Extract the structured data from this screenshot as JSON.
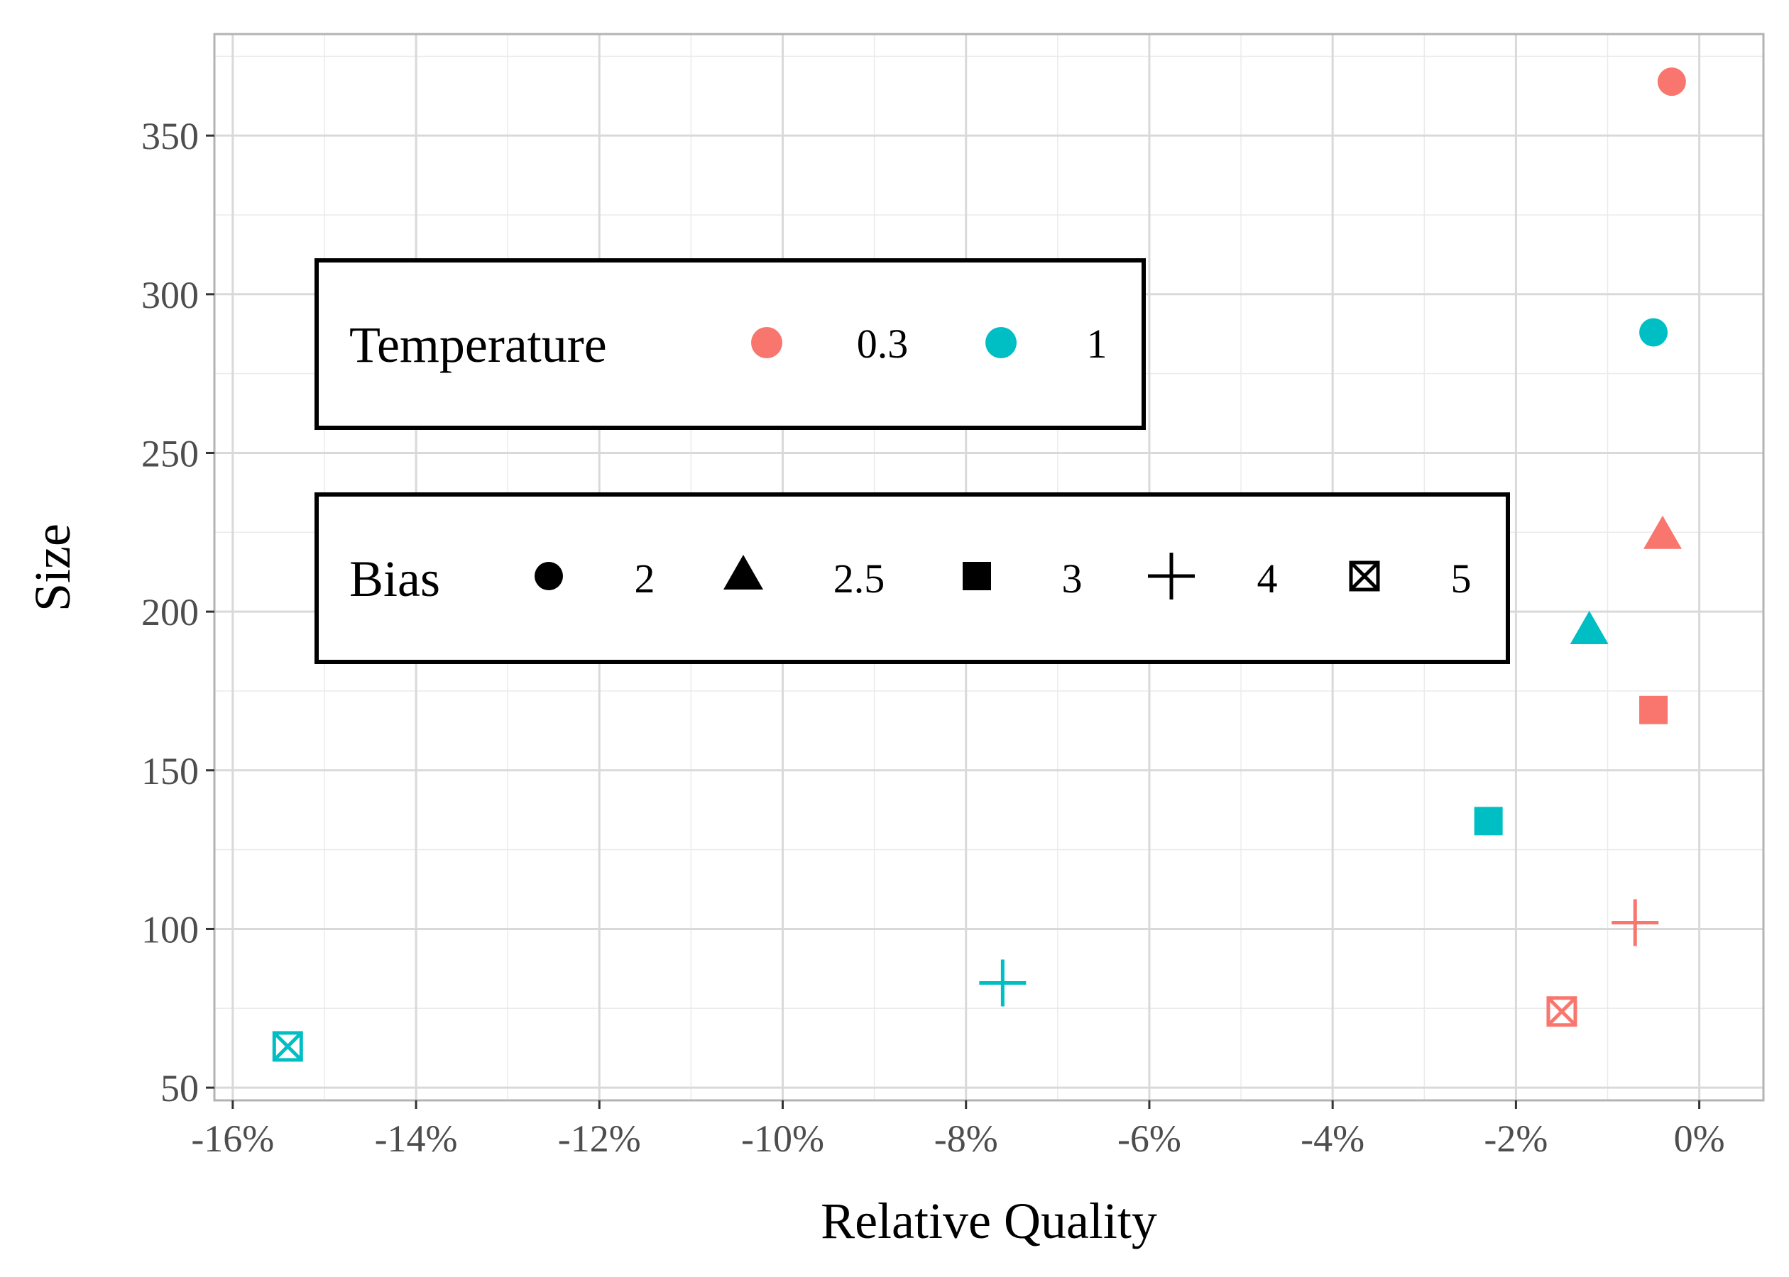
{
  "chart_data": {
    "type": "scatter",
    "xlabel": "Relative Quality",
    "ylabel": "Size",
    "xlim": [
      -16.2,
      0.7
    ],
    "ylim": [
      46,
      382
    ],
    "x_ticks": [
      -16,
      -14,
      -12,
      -10,
      -8,
      -6,
      -4,
      -2,
      0
    ],
    "x_tick_labels": [
      "-16%",
      "-14%",
      "-12%",
      "-10%",
      "-8%",
      "-6%",
      "-4%",
      "-2%",
      "0%"
    ],
    "y_ticks": [
      50,
      100,
      150,
      200,
      250,
      300,
      350
    ],
    "y_tick_labels": [
      "50",
      "100",
      "150",
      "200",
      "250",
      "300",
      "350"
    ],
    "grid": true,
    "colors": {
      "0.3": "#F8766D",
      "1": "#00BFC4"
    },
    "points": [
      {
        "x": -0.3,
        "y": 367,
        "temperature": "0.3",
        "bias": "2"
      },
      {
        "x": -0.5,
        "y": 288,
        "temperature": "1",
        "bias": "2"
      },
      {
        "x": -0.4,
        "y": 224,
        "temperature": "0.3",
        "bias": "2.5"
      },
      {
        "x": -1.2,
        "y": 194,
        "temperature": "1",
        "bias": "2.5"
      },
      {
        "x": -0.5,
        "y": 169,
        "temperature": "0.3",
        "bias": "3"
      },
      {
        "x": -2.3,
        "y": 134,
        "temperature": "1",
        "bias": "3"
      },
      {
        "x": -0.7,
        "y": 102,
        "temperature": "0.3",
        "bias": "4"
      },
      {
        "x": -7.6,
        "y": 83,
        "temperature": "1",
        "bias": "4"
      },
      {
        "x": -1.5,
        "y": 74,
        "temperature": "0.3",
        "bias": "5"
      },
      {
        "x": -15.4,
        "y": 63,
        "temperature": "1",
        "bias": "5"
      }
    ],
    "legends": {
      "temperature": {
        "title": "Temperature",
        "entries": [
          {
            "label": "0.3",
            "color": "#F8766D"
          },
          {
            "label": "1",
            "color": "#00BFC4"
          }
        ]
      },
      "bias": {
        "title": "Bias",
        "entries": [
          {
            "label": "2",
            "shape": "circle"
          },
          {
            "label": "2.5",
            "shape": "triangle"
          },
          {
            "label": "3",
            "shape": "square"
          },
          {
            "label": "4",
            "shape": "plus"
          },
          {
            "label": "5",
            "shape": "boxed-x"
          }
        ]
      }
    }
  }
}
